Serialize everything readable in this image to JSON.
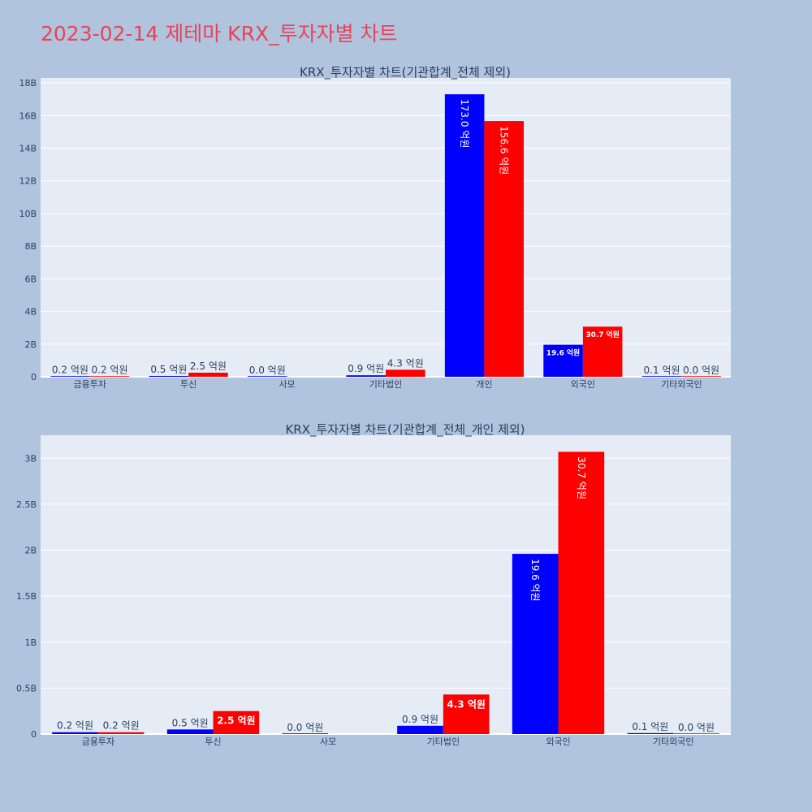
{
  "title": "2023-02-14 제테마 KRX_투자자별 차트",
  "colors": {
    "buy": "#0000ff",
    "sell": "#ff0000",
    "plot_bg": "#e5ecf6",
    "paper_bg": "#b0c4de",
    "title": "#e8435a"
  },
  "chart_data": [
    {
      "type": "bar",
      "title": "KRX_투자자별 차트(기관합계_전체 제외)",
      "categories": [
        "금융투자",
        "투신",
        "사모",
        "기타법인",
        "개인",
        "외국인",
        "기타외국인"
      ],
      "series": [
        {
          "values": [
            0.02,
            0.05,
            0.0,
            0.09,
            17.3,
            1.96,
            0.01
          ],
          "labels": [
            "0.2 억원",
            "0.5 억원",
            "0.0 억원",
            "0.9 억원",
            "173.0 억원",
            "19.6 억원",
            "0.1 억원"
          ]
        },
        {
          "values": [
            0.02,
            0.25,
            null,
            0.43,
            15.66,
            3.07,
            0.0
          ],
          "labels": [
            "0.2 억원",
            "2.5 억원",
            "",
            "4.3 억원",
            "156.6 억원",
            "30.7 억원",
            "0.0 억원"
          ]
        }
      ],
      "ylim": [
        0,
        18.3
      ],
      "yticks": [
        0,
        2,
        4,
        6,
        8,
        10,
        12,
        14,
        16,
        18
      ],
      "ytick_labels": [
        "0",
        "2B",
        "4B",
        "6B",
        "8B",
        "10B",
        "12B",
        "14B",
        "16B",
        "18B"
      ]
    },
    {
      "type": "bar",
      "title": "KRX_투자자별 차트(기관합계_전체_개인 제외)",
      "categories": [
        "금융투자",
        "투신",
        "사모",
        "기타법인",
        "외국인",
        "기타외국인"
      ],
      "series": [
        {
          "values": [
            0.02,
            0.05,
            0.0,
            0.09,
            1.96,
            0.01
          ],
          "labels": [
            "0.2 억원",
            "0.5 억원",
            "0.0 억원",
            "0.9 억원",
            "19.6 억원",
            "0.1 억원"
          ]
        },
        {
          "values": [
            0.02,
            0.25,
            null,
            0.43,
            3.07,
            0.0
          ],
          "labels": [
            "0.2 억원",
            "2.5 억원",
            "",
            "4.3 억원",
            "30.7 억원",
            "0.0 억원"
          ]
        }
      ],
      "ylim": [
        0,
        3.25
      ],
      "yticks": [
        0,
        0.5,
        1,
        1.5,
        2,
        2.5,
        3
      ],
      "ytick_labels": [
        "0",
        "0.5B",
        "1B",
        "1.5B",
        "2B",
        "2.5B",
        "3B"
      ]
    }
  ]
}
